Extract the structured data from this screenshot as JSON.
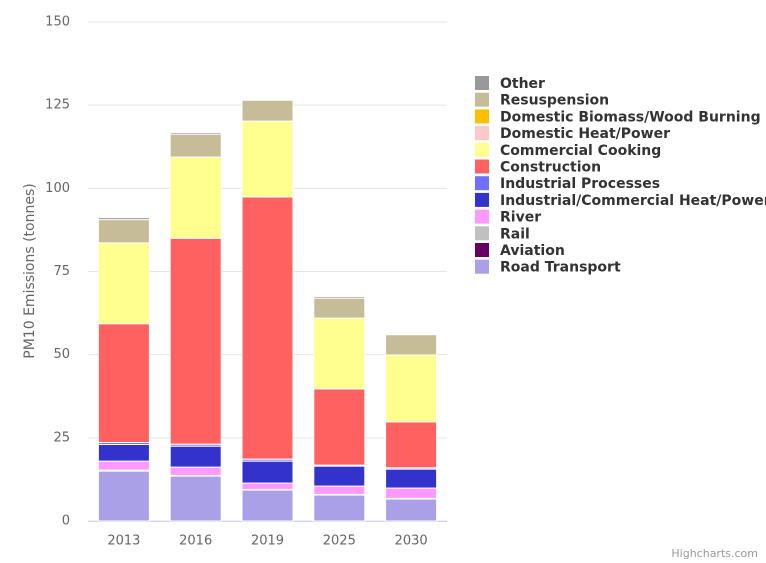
{
  "chart_data": {
    "type": "stacked_bar",
    "y_axis_label": "PM10 Emissions (tonnes)",
    "credits": "Highcharts.com",
    "categories": [
      "2013",
      "2016",
      "2019",
      "2025",
      "2030"
    ],
    "ylim": [
      0,
      150
    ],
    "yticks": [
      0,
      25,
      50,
      75,
      100,
      125,
      150
    ],
    "grid": true,
    "series": [
      {
        "name": "Road Transport",
        "color": "#aaa0e8",
        "values": [
          15,
          13.5,
          9.3,
          7.8,
          6.6
        ]
      },
      {
        "name": "Aviation",
        "color": "#660066",
        "values": [
          0,
          0,
          0,
          0,
          0
        ]
      },
      {
        "name": "Rail",
        "color": "#c0c0c0",
        "values": [
          0.3,
          0.2,
          0.2,
          0.2,
          0.2
        ]
      },
      {
        "name": "River",
        "color": "#ff99ff",
        "values": [
          2.7,
          2.5,
          1.9,
          2.5,
          3.1
        ]
      },
      {
        "name": "Industrial/Commercial Heat/Power",
        "color": "#3333cc",
        "values": [
          5,
          6.3,
          6.6,
          6,
          5.7
        ]
      },
      {
        "name": "Industrial Processes",
        "color": "#7070ff",
        "values": [
          0.6,
          0.6,
          0.6,
          0.3,
          0.4
        ]
      },
      {
        "name": "Construction",
        "color": "#ff6060",
        "values": [
          35.7,
          61.9,
          78.8,
          22.9,
          13.8
        ]
      },
      {
        "name": "Commercial Cooking",
        "color": "#ffff90",
        "values": [
          24.3,
          24.4,
          22.8,
          21.3,
          20.1
        ]
      },
      {
        "name": "Domestic Heat/Power",
        "color": "#ffc8c8",
        "values": [
          0,
          0,
          0,
          0,
          0
        ]
      },
      {
        "name": "Domestic Biomass/Wood Burning",
        "color": "#ffbf00",
        "values": [
          0,
          0,
          0,
          0,
          0
        ]
      },
      {
        "name": "Resuspension",
        "color": "#c6bc98",
        "values": [
          7,
          6.9,
          6.3,
          6,
          6.1
        ]
      },
      {
        "name": "Other",
        "color": "#999999",
        "values": [
          0.6,
          0.5,
          0.2,
          0.5,
          0
        ]
      }
    ]
  }
}
